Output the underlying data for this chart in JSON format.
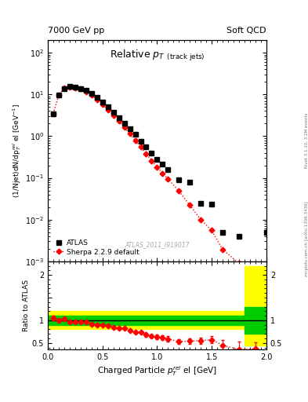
{
  "top_left_label": "7000 GeV pp",
  "top_right_label": "Soft QCD",
  "right_label_top": "Rivet 3.1.10, 3.2M events",
  "right_label_bot": "mcplots.cern.ch [arXiv:1306.3436]",
  "watermark": "ATLAS_2011_I919017",
  "ylabel_main": "(1/Njet)dN/dp$^{rel}_{T}$ el [GeV$^{-1}$]",
  "ylabel_ratio": "Ratio to ATLAS",
  "xlabel": "Charged Particle $p^{rel}_{T}$ el [GeV]",
  "xlim": [
    0,
    2.0
  ],
  "ylim_main": [
    0.001,
    200
  ],
  "ylim_ratio": [
    0.35,
    2.3
  ],
  "atlas_x": [
    0.05,
    0.1,
    0.15,
    0.2,
    0.25,
    0.3,
    0.35,
    0.4,
    0.45,
    0.5,
    0.55,
    0.6,
    0.65,
    0.7,
    0.75,
    0.8,
    0.85,
    0.9,
    0.95,
    1.0,
    1.05,
    1.1,
    1.2,
    1.3,
    1.4,
    1.5,
    1.6,
    1.75
  ],
  "atlas_y": [
    3.5,
    9.5,
    14.0,
    15.5,
    15.0,
    14.0,
    12.5,
    10.5,
    8.5,
    6.5,
    5.0,
    3.8,
    2.8,
    2.0,
    1.5,
    1.1,
    0.75,
    0.55,
    0.4,
    0.28,
    0.21,
    0.16,
    0.09,
    0.08,
    0.024,
    0.023,
    0.005,
    0.004
  ],
  "atlas_last_x": 2.0,
  "atlas_last_y": 0.005,
  "sherpa_x": [
    0.05,
    0.1,
    0.15,
    0.2,
    0.25,
    0.3,
    0.35,
    0.4,
    0.45,
    0.5,
    0.55,
    0.6,
    0.65,
    0.7,
    0.75,
    0.8,
    0.85,
    0.9,
    0.95,
    1.0,
    1.05,
    1.1,
    1.2,
    1.3,
    1.4,
    1.5,
    1.6,
    1.75,
    1.9
  ],
  "sherpa_y": [
    3.5,
    9.5,
    14.5,
    15.0,
    14.5,
    13.5,
    11.5,
    9.5,
    7.5,
    5.8,
    4.3,
    3.2,
    2.3,
    1.65,
    1.15,
    0.8,
    0.55,
    0.37,
    0.26,
    0.18,
    0.13,
    0.095,
    0.048,
    0.022,
    0.01,
    0.0055,
    0.0019,
    0.0009,
    0.00055
  ],
  "ratio_x": [
    0.05,
    0.1,
    0.15,
    0.2,
    0.25,
    0.3,
    0.35,
    0.4,
    0.45,
    0.5,
    0.55,
    0.6,
    0.65,
    0.7,
    0.75,
    0.8,
    0.85,
    0.9,
    0.95,
    1.0,
    1.05,
    1.1,
    1.2,
    1.3,
    1.4,
    1.5,
    1.6,
    1.75,
    1.9
  ],
  "ratio_y": [
    1.05,
    1.0,
    1.03,
    0.97,
    0.96,
    0.97,
    0.97,
    0.92,
    0.89,
    0.89,
    0.87,
    0.84,
    0.83,
    0.82,
    0.78,
    0.73,
    0.73,
    0.68,
    0.65,
    0.64,
    0.62,
    0.59,
    0.53,
    0.54,
    0.55,
    0.57,
    0.45,
    0.35,
    0.37
  ],
  "ratio_yerr": [
    0.05,
    0.03,
    0.02,
    0.02,
    0.02,
    0.02,
    0.02,
    0.02,
    0.02,
    0.02,
    0.02,
    0.02,
    0.02,
    0.02,
    0.03,
    0.03,
    0.03,
    0.04,
    0.04,
    0.05,
    0.05,
    0.06,
    0.05,
    0.06,
    0.07,
    0.08,
    0.12,
    0.18,
    0.15
  ],
  "color_atlas": "#000000",
  "color_sherpa": "#ff0000",
  "color_green_band": "#00cc00",
  "color_yellow_band": "#ffff00",
  "marker_atlas": "s",
  "marker_sherpa": "D",
  "atlas_markersize": 5,
  "sherpa_markersize": 3.5,
  "legend_atlas": "ATLAS",
  "legend_sherpa": "Sherpa 2.2.9 default"
}
